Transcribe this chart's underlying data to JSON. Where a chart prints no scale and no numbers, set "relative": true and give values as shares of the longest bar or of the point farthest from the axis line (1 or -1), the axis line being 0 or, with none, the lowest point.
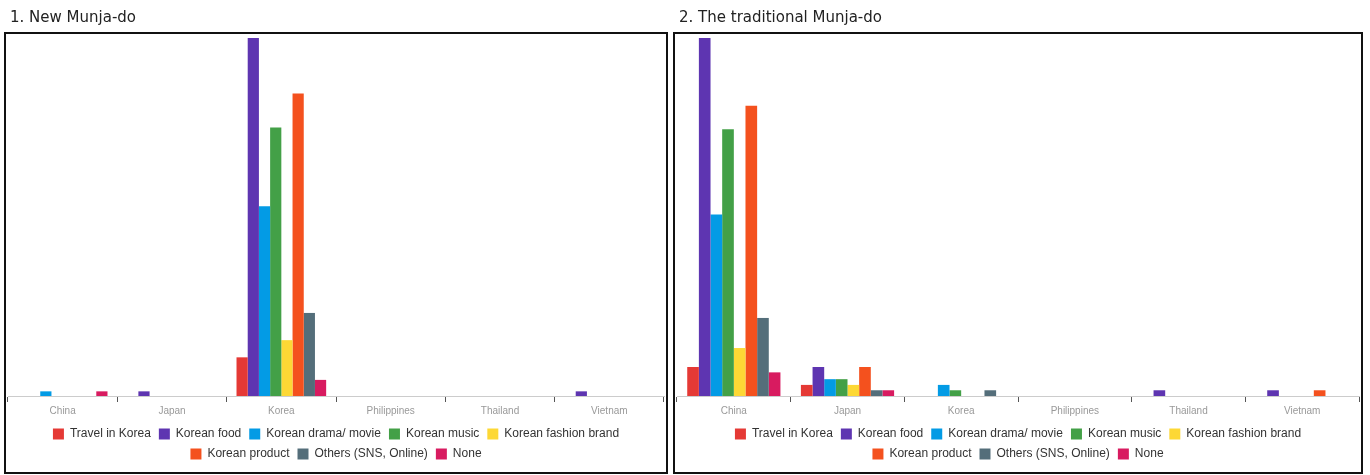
{
  "chart_data": [
    {
      "type": "bar",
      "title": "1. New Munja-do",
      "relative": true,
      "legend": "bottom",
      "categories": [
        "China",
        "Japan",
        "Korea",
        "Philippines",
        "Thailand",
        "Vietnam"
      ],
      "series": [
        {
          "name": "Travel in Korea",
          "color": "#e53935",
          "values": [
            null,
            null,
            0.108,
            null,
            null,
            null
          ]
        },
        {
          "name": "Korean food",
          "color": "#5e35b1",
          "values": [
            null,
            0.013,
            1,
            null,
            null,
            0.013
          ]
        },
        {
          "name": "Korean drama/ movie",
          "color": "#039be5",
          "values": [
            0.013,
            null,
            0.53,
            null,
            null,
            null
          ]
        },
        {
          "name": "Korean music",
          "color": "#43a047",
          "values": [
            null,
            null,
            0.75,
            null,
            null,
            null
          ]
        },
        {
          "name": "Korean fashion brand",
          "color": "#fdd835",
          "values": [
            null,
            null,
            0.156,
            null,
            null,
            null
          ]
        },
        {
          "name": "Korean product",
          "color": "#f4511e",
          "values": [
            null,
            null,
            0.845,
            null,
            null,
            null
          ]
        },
        {
          "name": "Others (SNS, Online)",
          "color": "#546e7a",
          "values": [
            null,
            null,
            0.232,
            null,
            null,
            null
          ]
        },
        {
          "name": "None",
          "color": "#d81b60",
          "values": [
            0.013,
            null,
            0.045,
            null,
            null,
            null
          ]
        }
      ]
    },
    {
      "type": "bar",
      "title": "2. The traditional Munja-do",
      "relative": true,
      "legend": "bottom",
      "categories": [
        "China",
        "Japan",
        "Korea",
        "Philippines",
        "Thailand",
        "Vietnam"
      ],
      "series": [
        {
          "name": "Travel in Korea",
          "color": "#e53935",
          "values": [
            0.081,
            0.031,
            null,
            null,
            null,
            null
          ]
        },
        {
          "name": "Korean food",
          "color": "#5e35b1",
          "values": [
            1,
            0.081,
            null,
            null,
            0.016,
            0.016
          ]
        },
        {
          "name": "Korean drama/ movie",
          "color": "#039be5",
          "values": [
            0.507,
            0.047,
            0.031,
            null,
            null,
            null
          ]
        },
        {
          "name": "Korean music",
          "color": "#43a047",
          "values": [
            0.745,
            0.047,
            0.016,
            null,
            null,
            null
          ]
        },
        {
          "name": "Korean fashion brand",
          "color": "#fdd835",
          "values": [
            0.134,
            0.031,
            null,
            null,
            null,
            null
          ]
        },
        {
          "name": "Korean product",
          "color": "#f4511e",
          "values": [
            0.811,
            0.081,
            null,
            null,
            null,
            0.016
          ]
        },
        {
          "name": "Others (SNS, Online)",
          "color": "#546e7a",
          "values": [
            0.218,
            0.016,
            0.016,
            null,
            null,
            null
          ]
        },
        {
          "name": "None",
          "color": "#d81b60",
          "values": [
            0.066,
            0.016,
            null,
            null,
            null,
            null
          ]
        }
      ]
    }
  ]
}
